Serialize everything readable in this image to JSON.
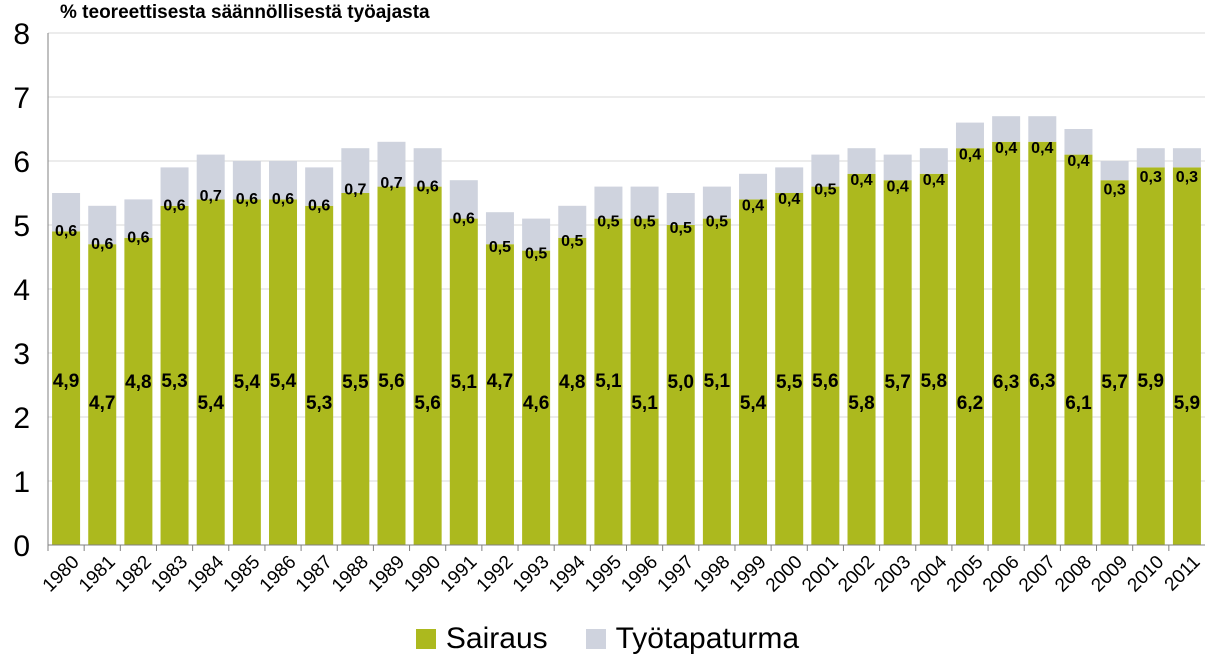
{
  "chart_data": {
    "type": "bar",
    "stacked": true,
    "title": "",
    "ylabel": "% teoreettisesta säännöllisestä työajasta",
    "xlabel": "",
    "ylim": [
      0,
      8
    ],
    "yticks": [
      "0",
      "1",
      "2",
      "3",
      "4",
      "5",
      "6",
      "7",
      "8"
    ],
    "categories": [
      "1980",
      "1981",
      "1982",
      "1983",
      "1984",
      "1985",
      "1986",
      "1987",
      "1988",
      "1989",
      "1990",
      "1991",
      "1992",
      "1993",
      "1994",
      "1995",
      "1996",
      "1997",
      "1998",
      "1999",
      "2000",
      "2001",
      "2002",
      "2003",
      "2004",
      "2005",
      "2006",
      "2007",
      "2008",
      "2009",
      "2010",
      "2011"
    ],
    "series": [
      {
        "name": "Sairaus",
        "color": "#acb91e",
        "values": [
          4.9,
          4.7,
          4.8,
          5.3,
          5.4,
          5.4,
          5.4,
          5.3,
          5.5,
          5.6,
          5.6,
          5.1,
          4.7,
          4.6,
          4.8,
          5.1,
          5.1,
          5.0,
          5.1,
          5.4,
          5.5,
          5.6,
          5.8,
          5.7,
          5.8,
          6.2,
          6.3,
          6.3,
          6.1,
          5.7,
          5.9,
          5.9
        ],
        "labels": [
          "4,9",
          "4,7",
          "4,8",
          "5,3",
          "5,4",
          "5,4",
          "5,4",
          "5,3",
          "5,5",
          "5,6",
          "5,6",
          "5,1",
          "4,7",
          "4,6",
          "4,8",
          "5,1",
          "5,1",
          "5,0",
          "5,1",
          "5,4",
          "5,5",
          "5,6",
          "5,8",
          "5,7",
          "5,8",
          "6,2",
          "6,3",
          "6,3",
          "6,1",
          "5,7",
          "5,9",
          "5,9"
        ]
      },
      {
        "name": "Työtapaturma",
        "color": "#cfd3de",
        "values": [
          0.6,
          0.6,
          0.6,
          0.6,
          0.7,
          0.6,
          0.6,
          0.6,
          0.7,
          0.7,
          0.6,
          0.6,
          0.5,
          0.5,
          0.5,
          0.5,
          0.5,
          0.5,
          0.5,
          0.4,
          0.4,
          0.5,
          0.4,
          0.4,
          0.4,
          0.4,
          0.4,
          0.4,
          0.4,
          0.3,
          0.3,
          0.3
        ],
        "labels": [
          "0,6",
          "0,6",
          "0,6",
          "0,6",
          "0,7",
          "0,6",
          "0,6",
          "0,6",
          "0,7",
          "0,7",
          "0,6",
          "0,6",
          "0,5",
          "0,5",
          "0,5",
          "0,5",
          "0,5",
          "0,5",
          "0,5",
          "0,4",
          "0,4",
          "0,5",
          "0,4",
          "0,4",
          "0,4",
          "0,4",
          "0,4",
          "0,4",
          "0,4",
          "0,3",
          "0,3",
          "0,3"
        ]
      }
    ],
    "grid": true,
    "legend_position": "bottom"
  }
}
